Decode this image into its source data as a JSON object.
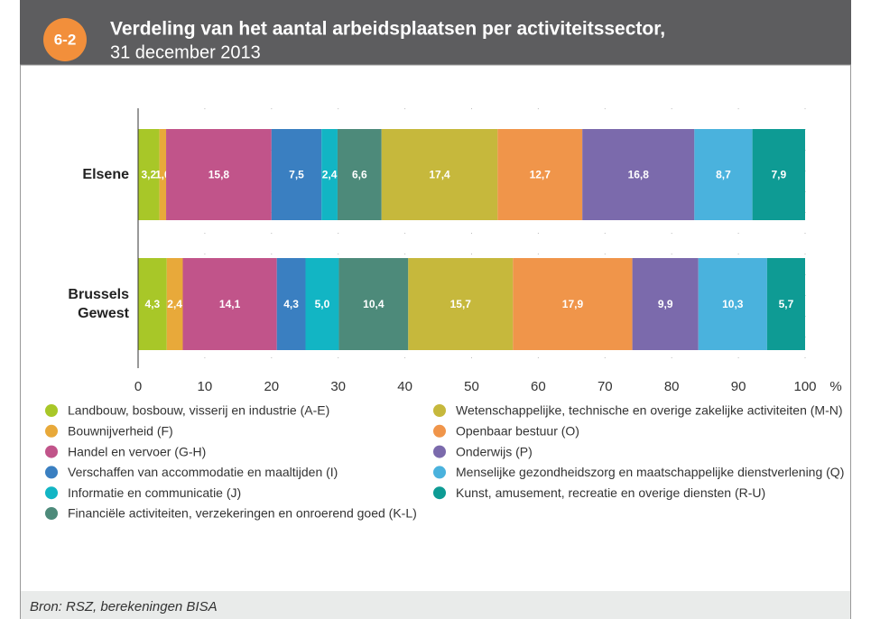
{
  "badge": "6-2",
  "chart_data": {
    "type": "stacked-barh",
    "title": "Verdeling van het aantal arbeidsplaatsen per activiteitssector,",
    "subtitle": "31 december 2013",
    "categories": [
      "Elsene",
      "Brussels Gewest"
    ],
    "xlim": [
      0,
      100
    ],
    "xticks": [
      0,
      10,
      20,
      30,
      40,
      50,
      60,
      70,
      80,
      90,
      100
    ],
    "x_unit": "%",
    "grid": true,
    "series": [
      {
        "name": "Landbouw, bosbouw, visserij en industrie (A-E)",
        "color": "#a8c728",
        "values": [
          3.2,
          4.3
        ],
        "value_labels": [
          "3,2",
          "4,3"
        ]
      },
      {
        "name": "Bouwnijverheid (F)",
        "color": "#e8a93a",
        "values": [
          1.0,
          2.4
        ],
        "value_labels": [
          "1,0",
          "2,4"
        ]
      },
      {
        "name": "Handel en vervoer (G-H)",
        "color": "#c1548a",
        "values": [
          15.8,
          14.1
        ],
        "value_labels": [
          "15,8",
          "14,1"
        ]
      },
      {
        "name": "Verschaffen van accommodatie en maaltijden (I)",
        "color": "#3a7fc1",
        "values": [
          7.5,
          4.3
        ],
        "value_labels": [
          "7,5",
          "4,3"
        ]
      },
      {
        "name": "Informatie en communicatie (J)",
        "color": "#12b5c4",
        "values": [
          2.4,
          5.0
        ],
        "value_labels": [
          "2,4",
          "5,0"
        ]
      },
      {
        "name": "Financiële activiteiten, verzekeringen en onroerend goed (K-L)",
        "color": "#4d8a7a",
        "values": [
          6.6,
          10.4
        ],
        "value_labels": [
          "6,6",
          "10,4"
        ]
      },
      {
        "name": "Wetenschappelijke, technische en overige zakelijke activiteiten (M-N)",
        "color": "#c6b83c",
        "values": [
          17.4,
          15.7
        ],
        "value_labels": [
          "17,4",
          "15,7"
        ]
      },
      {
        "name": "Openbaar bestuur (O)",
        "color": "#f0954a",
        "values": [
          12.7,
          17.9
        ],
        "value_labels": [
          "12,7",
          "17,9"
        ]
      },
      {
        "name": "Onderwijs (P)",
        "color": "#7b6aac",
        "values": [
          16.8,
          9.9
        ],
        "value_labels": [
          "16,8",
          "9,9"
        ]
      },
      {
        "name": "Menselijke gezondheidszorg en maatschappelijke dienstverlening (Q)",
        "color": "#4ab2dd",
        "values": [
          8.7,
          10.3
        ],
        "value_labels": [
          "8,7",
          "10,3"
        ]
      },
      {
        "name": "Kunst, amusement, recreatie en overige diensten (R-U)",
        "color": "#0e9b94",
        "values": [
          7.9,
          5.7
        ],
        "value_labels": [
          "7,9",
          "5,7"
        ]
      }
    ]
  },
  "source": "Bron: RSZ, berekeningen BISA"
}
